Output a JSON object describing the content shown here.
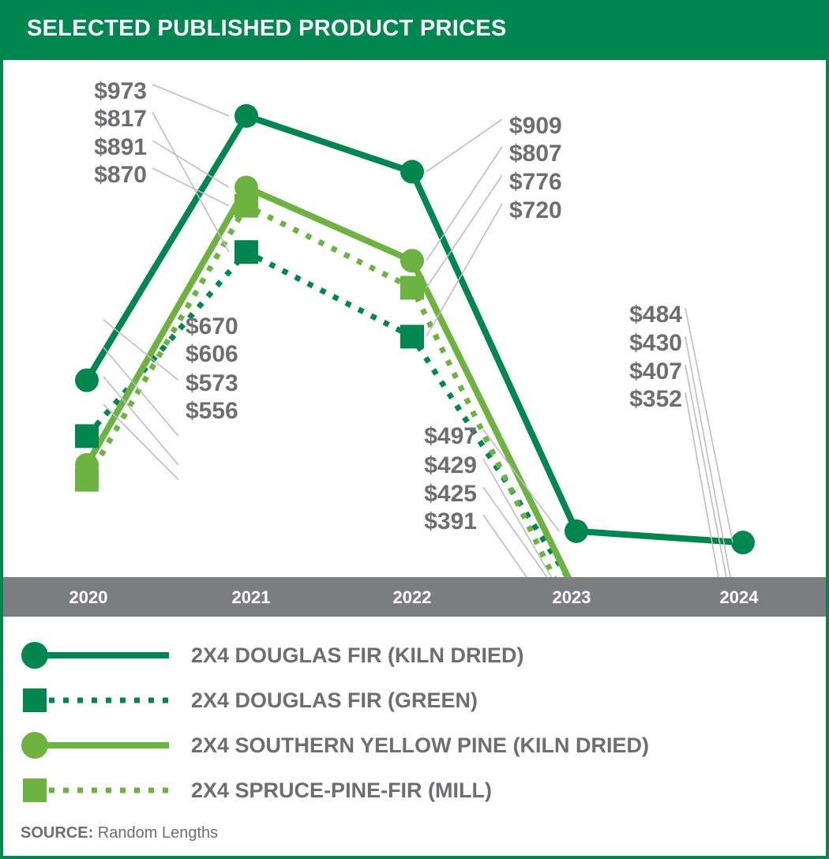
{
  "header": {
    "title": "SELECTED PUBLISHED PRODUCT PRICES"
  },
  "colors": {
    "dark_green": "#00874f",
    "light_green": "#6db33f",
    "gray": "#6d6e71",
    "band": "#7b7d80"
  },
  "chart_data": {
    "type": "line",
    "title": "SELECTED PUBLISHED PRODUCT PRICES",
    "x": [
      "2020",
      "2021",
      "2022",
      "2023",
      "2024"
    ],
    "ylabel": "",
    "series": [
      {
        "name": "2X4 DOUGLAS FIR (KILN DRIED)",
        "values": [
          670,
          973,
          909,
          497,
          484
        ],
        "labels": [
          "$670",
          "$973",
          "$909",
          "$497",
          "$484"
        ],
        "color": "#00874f",
        "style": "solid",
        "marker": "circle"
      },
      {
        "name": "2X4 DOUGLAS FIR (GREEN)",
        "values": [
          606,
          817,
          720,
          429,
          430
        ],
        "labels": [
          "$606",
          "$817",
          "$720",
          "$429",
          "$430"
        ],
        "color": "#00874f",
        "style": "dotted",
        "marker": "square"
      },
      {
        "name": "2X4 SOUTHERN YELLOW PINE (KILN DRIED)",
        "values": [
          573,
          891,
          807,
          425,
          352
        ],
        "labels": [
          "$573",
          "$891",
          "$807",
          "$425",
          "$352"
        ],
        "color": "#6db33f",
        "style": "solid",
        "marker": "circle"
      },
      {
        "name": "2X4 SPRUCE-PINE-FIR (MILL)",
        "values": [
          556,
          870,
          776,
          391,
          407
        ],
        "labels": [
          "$556",
          "$870",
          "$776",
          "$391",
          "$407"
        ],
        "color": "#6db33f",
        "style": "dotted",
        "marker": "square"
      }
    ],
    "legend": "bottom",
    "grid": false
  },
  "source": {
    "label": "SOURCE:",
    "text": "Random Lengths"
  }
}
